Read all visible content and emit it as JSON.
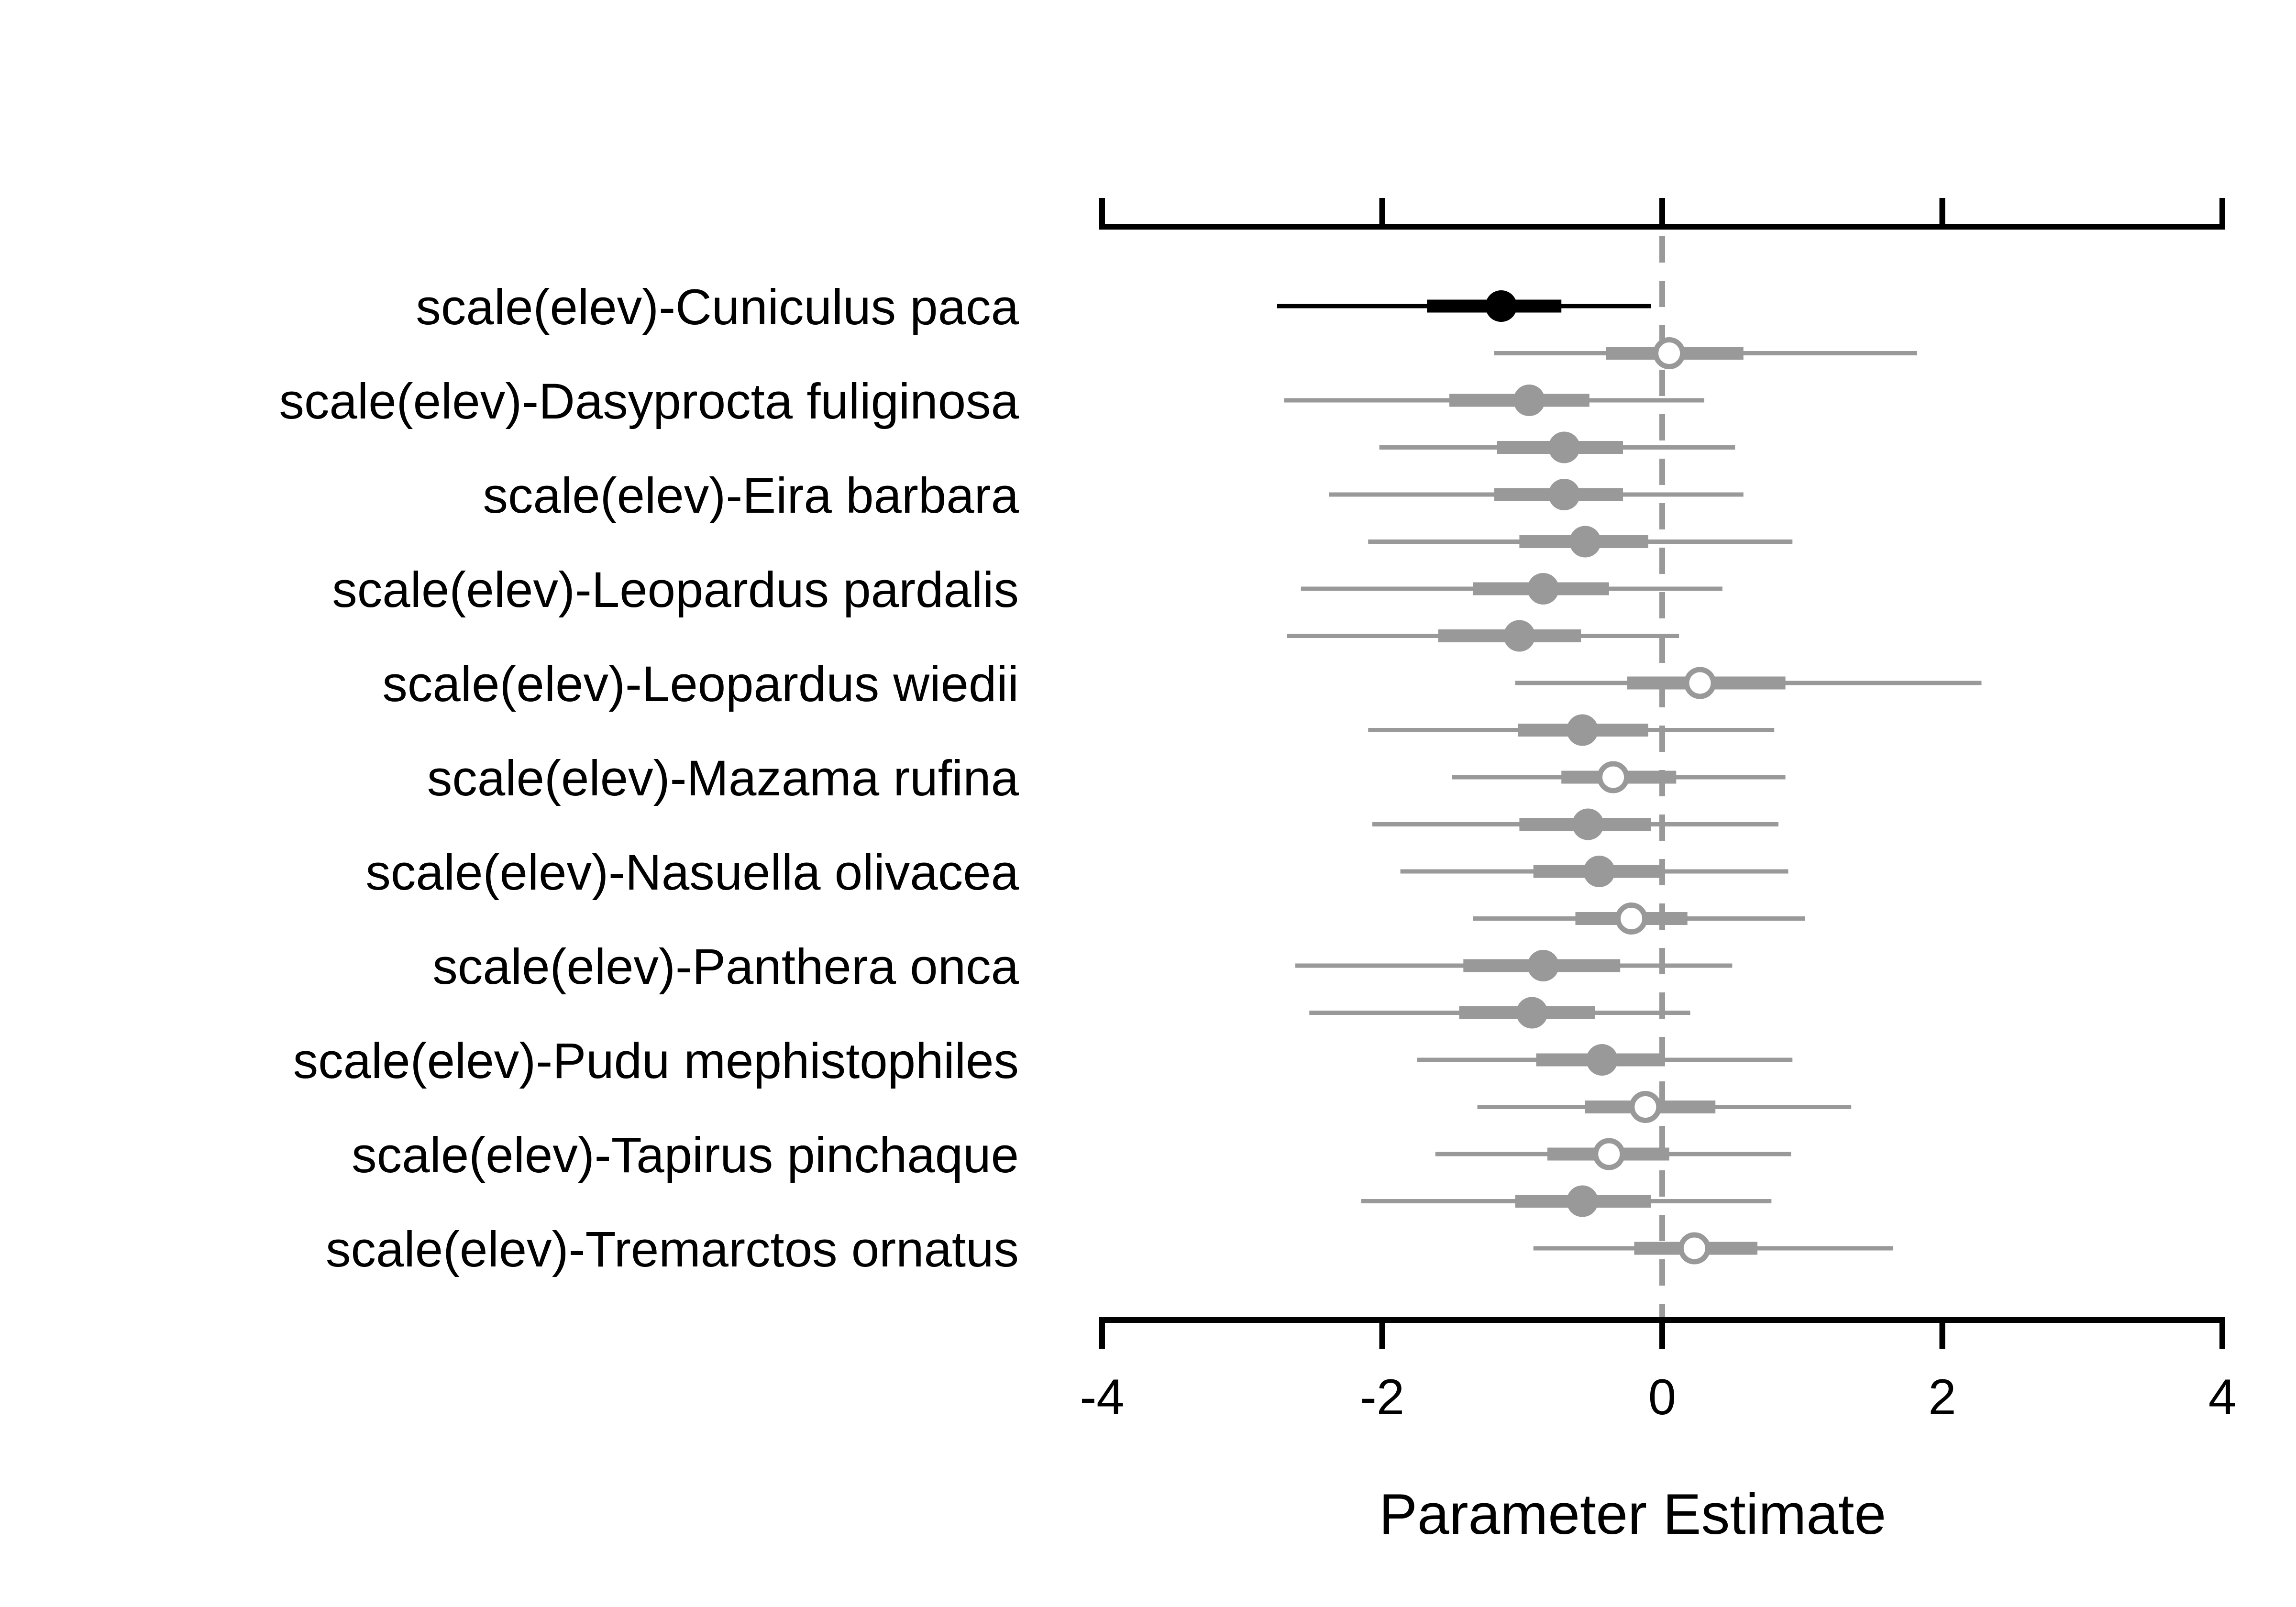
{
  "chart_data": {
    "type": "interval_plot",
    "xlabel": "Parameter Estimate",
    "xlim": [
      -4,
      4
    ],
    "xticks": [
      -4,
      -2,
      0,
      2,
      4
    ],
    "tick_labels": [
      "-4",
      "-2",
      "0",
      "2",
      "4"
    ],
    "reference_line": 0,
    "labels": [
      "scale(elev)-Cuniculus paca",
      "scale(elev)-Dasyprocta fuliginosa",
      "scale(elev)-Eira barbara",
      "scale(elev)-Leopardus pardalis",
      "scale(elev)-Leopardus wiedii",
      "scale(elev)-Mazama rufina",
      "scale(elev)-Nasuella olivacea",
      "scale(elev)-Panthera onca",
      "scale(elev)-Pudu mephistophiles",
      "scale(elev)-Tapirus pinchaque",
      "scale(elev)-Tremarctos ornatus"
    ],
    "estimates": [
      {
        "mean": -1.15,
        "inner": [
          -1.68,
          -0.72
        ],
        "outer": [
          -2.75,
          -0.08
        ],
        "open": false,
        "highlight": true
      },
      {
        "mean": 0.05,
        "inner": [
          -0.4,
          0.58
        ],
        "outer": [
          -1.2,
          1.82
        ],
        "open": true,
        "highlight": false
      },
      {
        "mean": -0.95,
        "inner": [
          -1.52,
          -0.52
        ],
        "outer": [
          -2.7,
          0.3
        ],
        "open": false,
        "highlight": false
      },
      {
        "mean": -0.7,
        "inner": [
          -1.18,
          -0.28
        ],
        "outer": [
          -2.02,
          0.52
        ],
        "open": false,
        "highlight": false
      },
      {
        "mean": -0.7,
        "inner": [
          -1.2,
          -0.28
        ],
        "outer": [
          -2.38,
          0.58
        ],
        "open": false,
        "highlight": false
      },
      {
        "mean": -0.55,
        "inner": [
          -1.02,
          -0.1
        ],
        "outer": [
          -2.1,
          0.93
        ],
        "open": false,
        "highlight": false
      },
      {
        "mean": -0.85,
        "inner": [
          -1.35,
          -0.38
        ],
        "outer": [
          -2.58,
          0.43
        ],
        "open": false,
        "highlight": false
      },
      {
        "mean": -1.02,
        "inner": [
          -1.6,
          -0.58
        ],
        "outer": [
          -2.68,
          0.12
        ],
        "open": false,
        "highlight": false
      },
      {
        "mean": 0.27,
        "inner": [
          -0.25,
          0.88
        ],
        "outer": [
          -1.05,
          2.28
        ],
        "open": true,
        "highlight": false
      },
      {
        "mean": -0.57,
        "inner": [
          -1.03,
          -0.1
        ],
        "outer": [
          -2.1,
          0.8
        ],
        "open": false,
        "highlight": false
      },
      {
        "mean": -0.35,
        "inner": [
          -0.72,
          0.1
        ],
        "outer": [
          -1.5,
          0.88
        ],
        "open": true,
        "highlight": false
      },
      {
        "mean": -0.53,
        "inner": [
          -1.02,
          -0.08
        ],
        "outer": [
          -2.07,
          0.83
        ],
        "open": false,
        "highlight": false
      },
      {
        "mean": -0.45,
        "inner": [
          -0.92,
          0.0
        ],
        "outer": [
          -1.87,
          0.9
        ],
        "open": false,
        "highlight": false
      },
      {
        "mean": -0.22,
        "inner": [
          -0.62,
          0.18
        ],
        "outer": [
          -1.35,
          1.02
        ],
        "open": true,
        "highlight": false
      },
      {
        "mean": -0.85,
        "inner": [
          -1.42,
          -0.3
        ],
        "outer": [
          -2.62,
          0.5
        ],
        "open": false,
        "highlight": false
      },
      {
        "mean": -0.93,
        "inner": [
          -1.45,
          -0.48
        ],
        "outer": [
          -2.52,
          0.2
        ],
        "open": false,
        "highlight": false
      },
      {
        "mean": -0.43,
        "inner": [
          -0.9,
          0.02
        ],
        "outer": [
          -1.75,
          0.93
        ],
        "open": false,
        "highlight": false
      },
      {
        "mean": -0.12,
        "inner": [
          -0.55,
          0.38
        ],
        "outer": [
          -1.32,
          1.35
        ],
        "open": true,
        "highlight": false
      },
      {
        "mean": -0.38,
        "inner": [
          -0.82,
          0.05
        ],
        "outer": [
          -1.62,
          0.92
        ],
        "open": true,
        "highlight": false
      },
      {
        "mean": -0.57,
        "inner": [
          -1.05,
          -0.08
        ],
        "outer": [
          -2.15,
          0.78
        ],
        "open": false,
        "highlight": false
      },
      {
        "mean": 0.23,
        "inner": [
          -0.2,
          0.68
        ],
        "outer": [
          -0.92,
          1.65
        ],
        "open": true,
        "highlight": false
      }
    ],
    "colors": {
      "highlight": "#000000",
      "other": "#999999",
      "reference_line": "#999999",
      "axis": "#000000",
      "open_fill": "#ffffff"
    },
    "grid": false,
    "legend": "none"
  }
}
